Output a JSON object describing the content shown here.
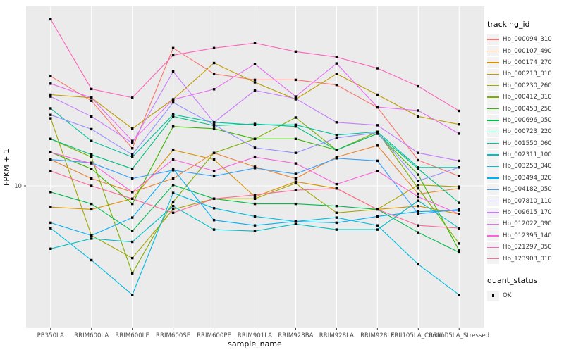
{
  "figure": {
    "background": "#FFFFFF",
    "panel_background": "#EBEBEB",
    "gridline_color": "#FFFFFF",
    "tick_color": "#333333",
    "tick_label_color": "#4D4D4D"
  },
  "axes": {
    "x_title": "sample_name",
    "y_title": "FPKM + 1",
    "y_tick_label": "10"
  },
  "legend": {
    "tracking_title": "tracking_id",
    "quant_title": "quant_status",
    "quant_items": [
      {
        "label": "OK",
        "marker": "black-square"
      }
    ]
  },
  "chart_data": {
    "type": "line",
    "title": "",
    "xlabel": "sample_name",
    "ylabel": "FPKM + 1",
    "y_scale": "log10",
    "y_tick_labels": [
      "10"
    ],
    "ylim": [
      2.2,
      75
    ],
    "grid": "major",
    "legend_title": "tracking_id",
    "legend_position": "right",
    "point_marker": "filled-black-square",
    "x_categories": [
      "PB350LA",
      "RRIM600LA",
      "RRIM600LE",
      "RRIM600SE",
      "RRIM600PE",
      "RRIM901LA",
      "RRIM928BA",
      "RRIM928LA",
      "RRIM928LE",
      "RRII105LA_Control",
      "RRII105LA_Stressed"
    ],
    "series": [
      {
        "name": "Hb_000094_310",
        "color": "#F8766D",
        "values": [
          36,
          27,
          15.5,
          50,
          37,
          34.5,
          34.5,
          32.5,
          25,
          13.5,
          11.2
        ]
      },
      {
        "name": "Hb_000107_490",
        "color": "#EA8331",
        "values": [
          13.6,
          10.9,
          9.3,
          10.9,
          14.7,
          12.5,
          10.9,
          14,
          16,
          9.1,
          9.7
        ]
      },
      {
        "name": "Hb_000174_270",
        "color": "#D89000",
        "values": [
          7.8,
          7.6,
          8.6,
          15.2,
          13.6,
          8.8,
          10.5,
          9.7,
          7.6,
          7.9,
          7.2
        ]
      },
      {
        "name": "Hb_000213_010",
        "color": "#C09B00",
        "values": [
          29,
          28,
          19.5,
          27.5,
          42,
          33.5,
          27.5,
          37,
          29,
          22.5,
          20.5
        ]
      },
      {
        "name": "Hb_000230_260",
        "color": "#A3A500",
        "values": [
          22,
          5.6,
          4.3,
          7.6,
          8.6,
          8.6,
          10.3,
          7.3,
          7.6,
          10.1,
          9.9
        ]
      },
      {
        "name": "Hb_000412_010",
        "color": "#7CAE00",
        "values": [
          17.3,
          14,
          3.6,
          8.3,
          14.7,
          17.3,
          22.2,
          15.2,
          18.8,
          9.7,
          5.1
        ]
      },
      {
        "name": "Hb_000453_250",
        "color": "#39B600",
        "values": [
          14.8,
          12.2,
          8.1,
          20,
          19.5,
          17.3,
          17.3,
          15.2,
          18.4,
          11.4,
          4.7
        ]
      },
      {
        "name": "Hb_000696_050",
        "color": "#00BB4E",
        "values": [
          9.3,
          8.1,
          5.9,
          10.1,
          8.6,
          8.1,
          8.1,
          7.9,
          7.6,
          5.8,
          4.6
        ]
      },
      {
        "name": "Hb_000723_220",
        "color": "#00BF7D",
        "values": [
          17.3,
          14.4,
          12.2,
          22.5,
          20.2,
          20.6,
          20,
          15.2,
          18.4,
          12.2,
          8.2
        ]
      },
      {
        "name": "Hb_001550_060",
        "color": "#00C1A3",
        "values": [
          24.7,
          16.9,
          14,
          23,
          21,
          20.4,
          20.4,
          18.1,
          18.8,
          12.4,
          12.4
        ]
      },
      {
        "name": "Hb_002311_100",
        "color": "#00BFC4",
        "values": [
          4.8,
          5.4,
          5.2,
          7.9,
          6.0,
          5.9,
          6.4,
          6.0,
          6.0,
          8.4,
          6.1
        ]
      },
      {
        "name": "Hb_003253_040",
        "color": "#00BAE0",
        "values": [
          6.1,
          4.2,
          2.8,
          9.2,
          7.7,
          7.0,
          6.6,
          6.9,
          6.3,
          4.0,
          2.8
        ]
      },
      {
        "name": "Hb_003494_020",
        "color": "#00B0F6",
        "values": [
          6.5,
          5.6,
          6.9,
          12.2,
          6.7,
          6.3,
          6.6,
          6.5,
          7.0,
          7.4,
          7.5
        ]
      },
      {
        "name": "Hb_004182_050",
        "color": "#35A2FF",
        "values": [
          13.6,
          13.1,
          10.9,
          12.0,
          11.2,
          12.3,
          11.5,
          13.8,
          13.4,
          7.2,
          7.6
        ]
      },
      {
        "name": "Hb_007810_110",
        "color": "#9590FF",
        "values": [
          22.9,
          19.4,
          14.4,
          26.5,
          20.4,
          15.6,
          14.7,
          17.5,
          18.6,
          10.6,
          12.4
        ]
      },
      {
        "name": "Hb_009615_170",
        "color": "#C77CFF",
        "values": [
          28.4,
          22.5,
          16.5,
          38,
          21,
          30.5,
          27.7,
          21,
          20.3,
          14.7,
          13.4
        ]
      },
      {
        "name": "Hb_012022_090",
        "color": "#E76BF3",
        "values": [
          33,
          28,
          16.9,
          27.4,
          30.9,
          41.5,
          28.4,
          41.8,
          25.1,
          24.1,
          18.4
        ]
      },
      {
        "name": "Hb_012395_140",
        "color": "#FA62DB",
        "values": [
          14.8,
          13,
          9.3,
          13.6,
          11.9,
          14,
          13,
          10.2,
          11.9,
          8.8,
          7.2
        ]
      },
      {
        "name": "Hb_021297_050",
        "color": "#FF62BC",
        "values": [
          70,
          31,
          28,
          46,
          50,
          53,
          48,
          45,
          39.5,
          32,
          24
        ]
      },
      {
        "name": "Hb_123903_010",
        "color": "#FF6A98",
        "values": [
          11.9,
          10,
          8.6,
          7.3,
          8.6,
          9.0,
          9.5,
          9.7,
          7.6,
          6.3,
          6.1
        ]
      }
    ]
  }
}
